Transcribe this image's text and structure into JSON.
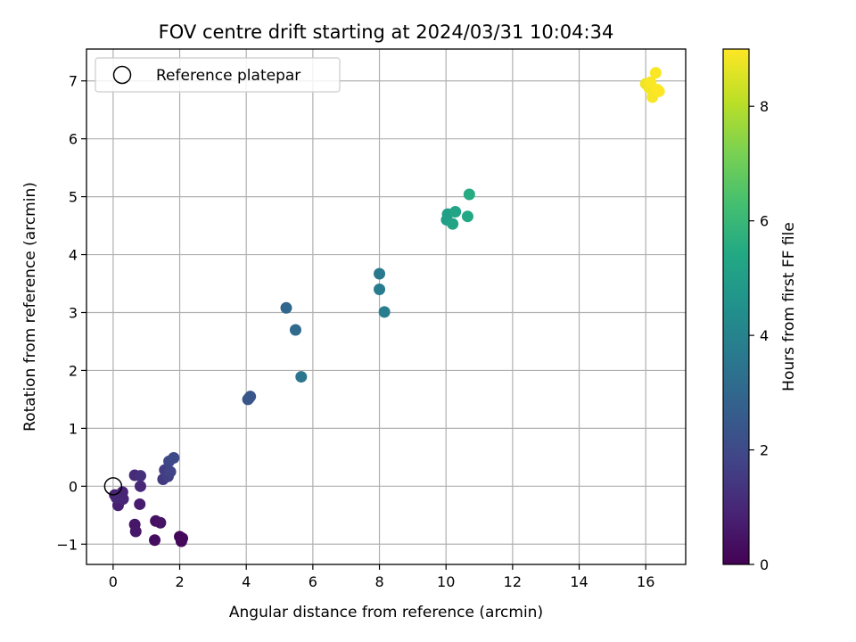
{
  "chart_data": {
    "type": "scatter",
    "title": "FOV centre drift starting at 2024/03/31 10:04:34",
    "xlabel": "Angular distance from reference (arcmin)",
    "ylabel": "Rotation from reference (arcmin)",
    "xlim": [
      -0.8,
      17.2
    ],
    "ylim": [
      -1.35,
      7.55
    ],
    "xticks": [
      0,
      2,
      4,
      6,
      8,
      10,
      12,
      14,
      16
    ],
    "yticks": [
      -1,
      0,
      1,
      2,
      3,
      4,
      5,
      6,
      7
    ],
    "xtick_labels": [
      "0",
      "2",
      "4",
      "6",
      "8",
      "10",
      "12",
      "14",
      "16"
    ],
    "ytick_labels": [
      "−1",
      "0",
      "1",
      "2",
      "3",
      "4",
      "5",
      "6",
      "7"
    ],
    "grid": true,
    "legend": {
      "location": "upper left",
      "entries": [
        {
          "label": "Reference platepar",
          "marker": "open-circle",
          "color": "#000000"
        }
      ]
    },
    "reference_point": {
      "x": 0,
      "y": 0
    },
    "colorbar": {
      "label": "Hours from first FF file",
      "colormap": "viridis",
      "range": [
        0,
        9
      ],
      "ticks": [
        0,
        2,
        4,
        6,
        8
      ],
      "tick_labels": [
        "0",
        "2",
        "4",
        "6",
        "8"
      ]
    },
    "points": [
      {
        "x": 2.0,
        "y": -0.87,
        "t": 0.1
      },
      {
        "x": 2.05,
        "y": -0.95,
        "t": 0.15
      },
      {
        "x": 2.08,
        "y": -0.9,
        "t": 0.2
      },
      {
        "x": 1.25,
        "y": -0.93,
        "t": 0.3
      },
      {
        "x": 1.28,
        "y": -0.6,
        "t": 0.4
      },
      {
        "x": 1.42,
        "y": -0.63,
        "t": 0.45
      },
      {
        "x": 0.65,
        "y": -0.66,
        "t": 0.55
      },
      {
        "x": 0.68,
        "y": -0.78,
        "t": 0.6
      },
      {
        "x": 0.8,
        "y": -0.31,
        "t": 0.7
      },
      {
        "x": 0.15,
        "y": -0.33,
        "t": 0.8
      },
      {
        "x": 0.05,
        "y": -0.15,
        "t": 0.85
      },
      {
        "x": 0.28,
        "y": -0.1,
        "t": 0.9
      },
      {
        "x": 0.3,
        "y": -0.22,
        "t": 0.95
      },
      {
        "x": 0.1,
        "y": -0.2,
        "t": 1.0
      },
      {
        "x": 0.82,
        "y": 0.0,
        "t": 1.05
      },
      {
        "x": 0.65,
        "y": 0.19,
        "t": 1.1
      },
      {
        "x": 0.82,
        "y": 0.18,
        "t": 1.2
      },
      {
        "x": 1.5,
        "y": 0.12,
        "t": 1.5
      },
      {
        "x": 1.55,
        "y": 0.28,
        "t": 1.6
      },
      {
        "x": 1.65,
        "y": 0.17,
        "t": 1.7
      },
      {
        "x": 1.72,
        "y": 0.25,
        "t": 1.8
      },
      {
        "x": 1.68,
        "y": 0.43,
        "t": 1.9
      },
      {
        "x": 1.82,
        "y": 0.49,
        "t": 2.0
      },
      {
        "x": 4.05,
        "y": 1.5,
        "t": 2.3
      },
      {
        "x": 4.12,
        "y": 1.55,
        "t": 2.35
      },
      {
        "x": 4.08,
        "y": 1.52,
        "t": 2.4
      },
      {
        "x": 5.2,
        "y": 3.08,
        "t": 3.0
      },
      {
        "x": 5.48,
        "y": 2.7,
        "t": 3.1
      },
      {
        "x": 5.65,
        "y": 1.89,
        "t": 3.5
      },
      {
        "x": 8.0,
        "y": 3.67,
        "t": 3.6
      },
      {
        "x": 8.0,
        "y": 3.4,
        "t": 3.7
      },
      {
        "x": 8.15,
        "y": 3.01,
        "t": 3.8
      },
      {
        "x": 10.02,
        "y": 4.6,
        "t": 5.0
      },
      {
        "x": 10.05,
        "y": 4.7,
        "t": 5.1
      },
      {
        "x": 10.2,
        "y": 4.53,
        "t": 5.2
      },
      {
        "x": 10.28,
        "y": 4.74,
        "t": 5.3
      },
      {
        "x": 10.65,
        "y": 4.66,
        "t": 5.4
      },
      {
        "x": 10.7,
        "y": 5.04,
        "t": 5.5
      },
      {
        "x": 16.0,
        "y": 6.95,
        "t": 8.8
      },
      {
        "x": 16.1,
        "y": 6.88,
        "t": 8.85
      },
      {
        "x": 16.2,
        "y": 6.72,
        "t": 8.9
      },
      {
        "x": 16.25,
        "y": 6.8,
        "t": 8.9
      },
      {
        "x": 16.3,
        "y": 7.14,
        "t": 8.95
      },
      {
        "x": 16.35,
        "y": 6.85,
        "t": 9.0
      },
      {
        "x": 16.4,
        "y": 6.82,
        "t": 9.0
      },
      {
        "x": 16.15,
        "y": 6.98,
        "t": 8.95
      }
    ]
  }
}
